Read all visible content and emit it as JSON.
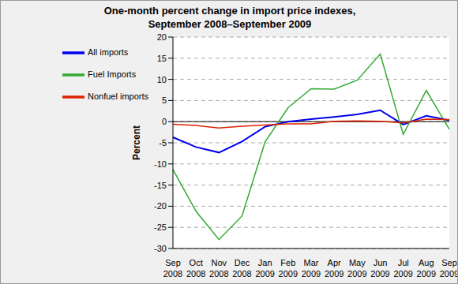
{
  "chart_data": {
    "type": "line",
    "title": "One-month percent change in import price indexes,\nSeptember 2008–September 2009",
    "y_label": "Percent",
    "categories": [
      "Sep 2008",
      "Oct 2008",
      "Nov 2008",
      "Dec 2008",
      "Jan 2009",
      "Feb 2009",
      "Mar 2009",
      "Apr 2009",
      "May 2009",
      "Jun 2009",
      "Jul 2009",
      "Aug 2009",
      "Sep 2009"
    ],
    "series": [
      {
        "name": "All imports",
        "color": "#0000ee",
        "values": [
          -3.7,
          -6.0,
          -7.3,
          -4.7,
          -1.2,
          0.0,
          0.6,
          1.1,
          1.7,
          2.7,
          -0.7,
          1.4,
          0.3
        ]
      },
      {
        "name": "Fuel Imports",
        "color": "#33aa33",
        "values": [
          -11.3,
          -21.2,
          -27.9,
          -22.3,
          -4.8,
          3.3,
          7.8,
          7.7,
          9.8,
          16.0,
          -3.0,
          7.4,
          -1.8
        ]
      },
      {
        "name": "Nonfuel imports",
        "color": "#dd2200",
        "values": [
          -0.6,
          -0.9,
          -1.5,
          -1.1,
          -0.8,
          -0.5,
          -0.5,
          0.1,
          0.2,
          0.1,
          -0.3,
          0.6,
          0.5
        ]
      }
    ],
    "ylim": [
      -30,
      20
    ],
    "yticks": [
      -30,
      -25,
      -20,
      -15,
      -10,
      -5,
      0,
      5,
      10,
      15,
      20
    ],
    "grid": true,
    "legend": "upper left"
  }
}
